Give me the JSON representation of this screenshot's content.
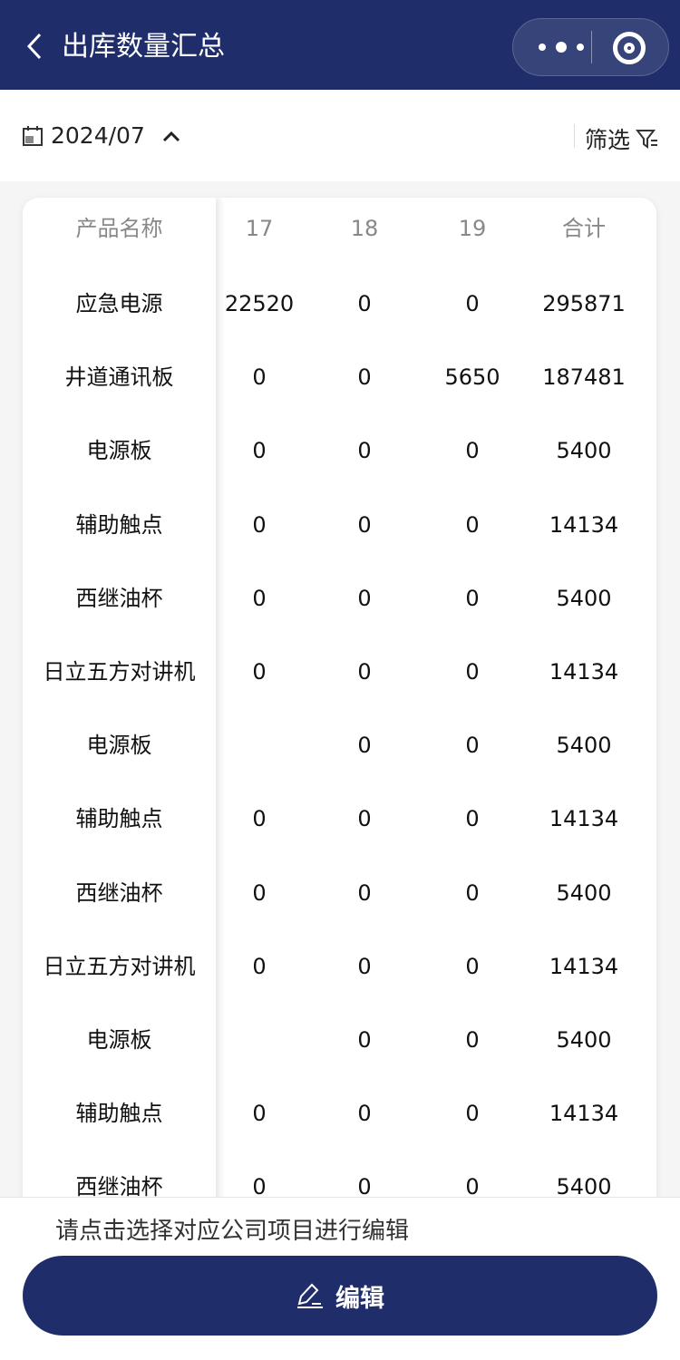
{
  "header": {
    "title": "出库数量汇总",
    "back_icon": "chevron-left-icon",
    "more_icon": "more-icon",
    "close_icon": "target-icon"
  },
  "toolbar": {
    "date": "2024/07",
    "filter_label": "筛选"
  },
  "table": {
    "columns": [
      "产品名称",
      "17",
      "18",
      "19",
      "合计"
    ],
    "rows": [
      [
        "应急电源",
        "22520",
        "0",
        "0",
        "295871"
      ],
      [
        "井道通讯板",
        "0",
        "0",
        "5650",
        "187481"
      ],
      [
        "电源板",
        "0",
        "0",
        "0",
        "5400"
      ],
      [
        "辅助触点",
        "0",
        "0",
        "0",
        "14134"
      ],
      [
        "西继油杯",
        "0",
        "0",
        "0",
        "5400"
      ],
      [
        "日立五方对讲机",
        "0",
        "0",
        "0",
        "14134"
      ],
      [
        "电源板",
        "",
        "0",
        "0",
        "5400"
      ],
      [
        "辅助触点",
        "0",
        "0",
        "0",
        "14134"
      ],
      [
        "西继油杯",
        "0",
        "0",
        "0",
        "5400"
      ],
      [
        "日立五方对讲机",
        "0",
        "0",
        "0",
        "14134"
      ],
      [
        "电源板",
        "",
        "0",
        "0",
        "5400"
      ],
      [
        "辅助触点",
        "0",
        "0",
        "0",
        "14134"
      ],
      [
        "西继油杯",
        "0",
        "0",
        "0",
        "5400"
      ]
    ]
  },
  "footer": {
    "hint": "请点击选择对应公司项目进行编辑",
    "edit_label": "编辑"
  },
  "colors": {
    "primary": "#1f2e6b"
  }
}
